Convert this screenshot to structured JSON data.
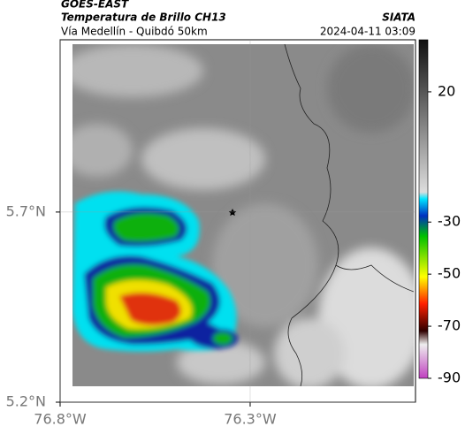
{
  "header": {
    "satellite": "GOES-EAST",
    "product": "Temperatura de Brillo CH13",
    "region": "Vía Medellín - Quibdó 50km",
    "source": "SIATA",
    "datetime": "2024-04-11 03:09"
  },
  "map": {
    "xlim": [
      -76.8,
      -75.865
    ],
    "ylim": [
      5.2,
      6.153
    ],
    "xticks": [
      {
        "value": -76.8,
        "label": "76.8°W"
      },
      {
        "value": -76.3,
        "label": "76.3°W"
      }
    ],
    "yticks": [
      {
        "value": 5.7,
        "label": "5.7°N"
      },
      {
        "value": 5.2,
        "label": "5.2°N"
      }
    ]
  },
  "colorbar": {
    "lim": [
      40,
      -90
    ],
    "ticks": [
      20,
      -30,
      -50,
      -70,
      -90
    ]
  }
}
